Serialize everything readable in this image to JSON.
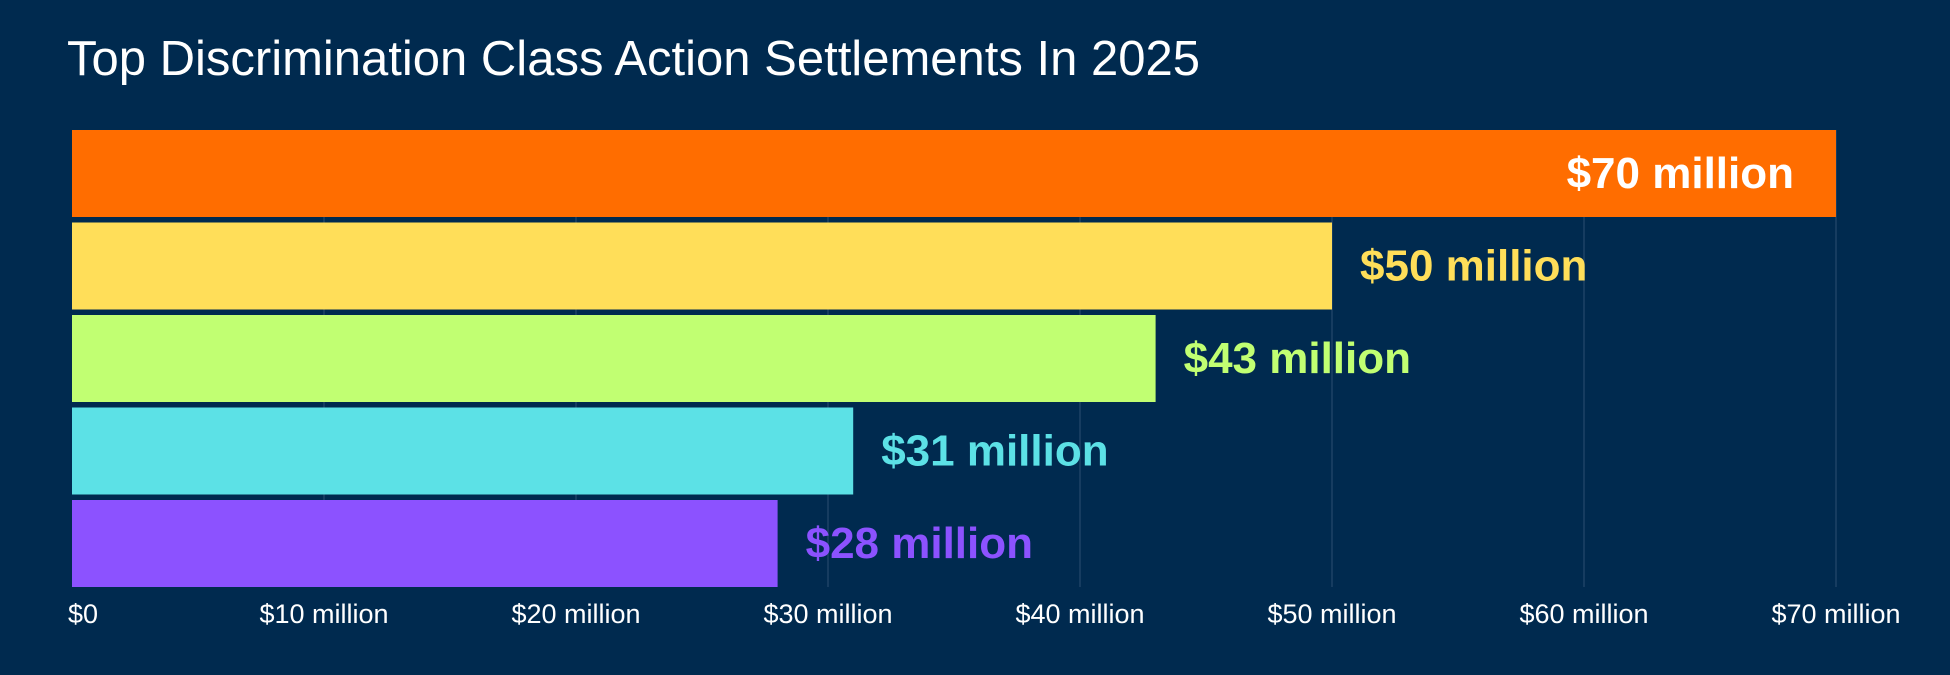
{
  "chart_data": {
    "type": "bar",
    "orientation": "horizontal",
    "title": "Top Discrimination Class Action Settlements In 2025",
    "xlabel": "",
    "ylabel": "",
    "values": [
      70,
      50,
      43,
      31,
      28
    ],
    "value_labels": [
      "$70 million",
      "$50 million",
      "$43 million",
      "$31 million",
      "$28 million"
    ],
    "colors": [
      "#ff6d00",
      "#ffde59",
      "#c1ff72",
      "#5ce1e6",
      "#8c52ff"
    ],
    "label_colors": [
      "#ffffff",
      "#ffde59",
      "#c1ff72",
      "#5ce1e6",
      "#8c52ff"
    ],
    "xlim": [
      0,
      70
    ],
    "x_ticks": [
      0,
      10,
      20,
      30,
      40,
      50,
      60,
      70
    ],
    "x_tick_labels": [
      "$0",
      "$10 million",
      "$20 million",
      "$30 million",
      "$40 million",
      "$50 million",
      "$60 million",
      "$70 million"
    ],
    "grid": true,
    "legend": "none",
    "background": "#002a4f"
  }
}
